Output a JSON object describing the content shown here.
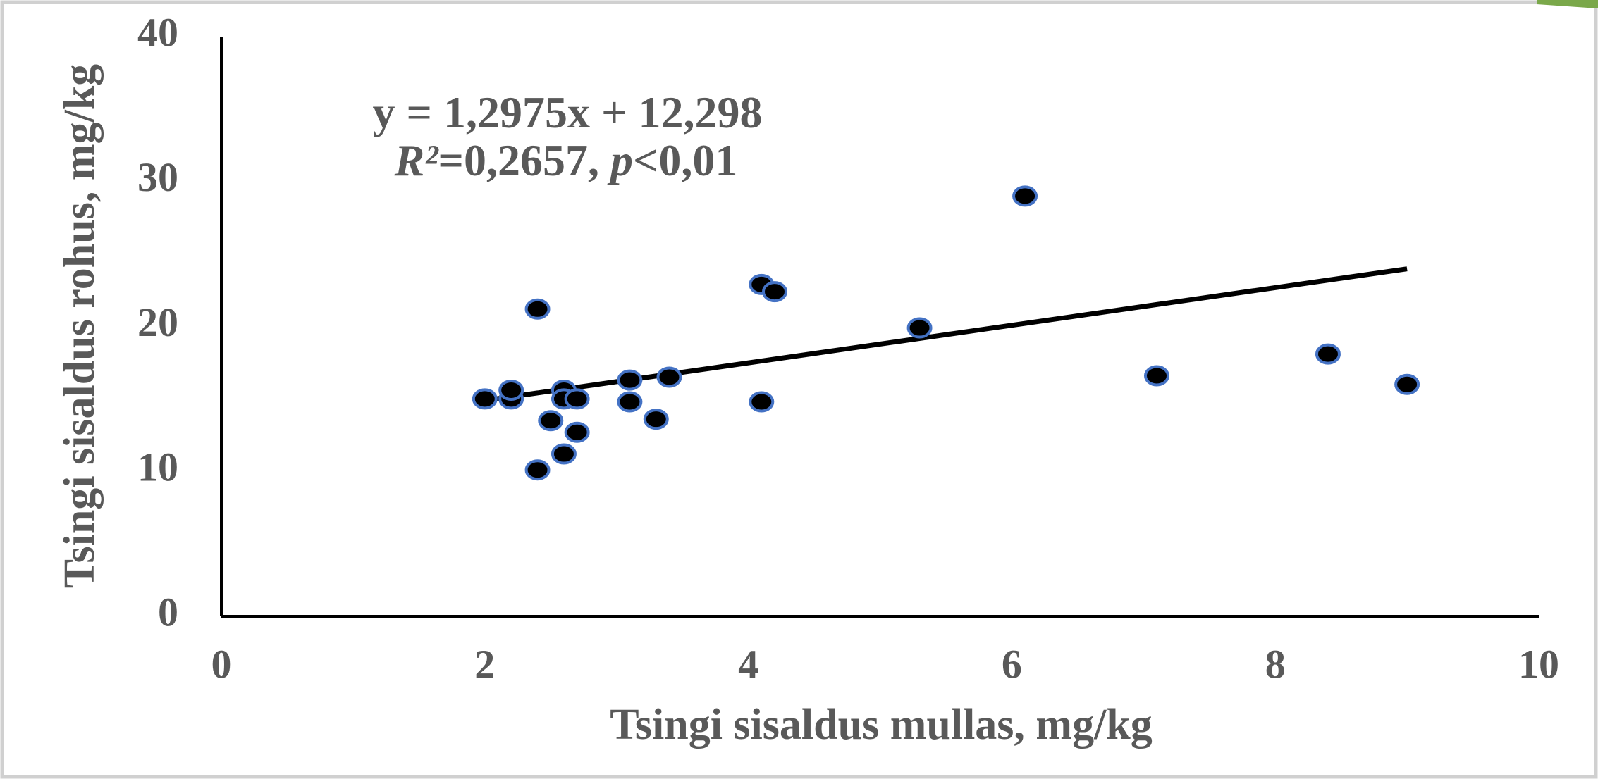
{
  "chart_data": {
    "type": "scatter",
    "x_label": "Tsingi sisaldus mullas, mg/kg",
    "y_label": "Tsingi sisaldus rohus, mg/kg",
    "annotations": [
      {
        "parts": [
          {
            "text": "y = 1,2975x + 12,298",
            "italic": false
          }
        ]
      },
      {
        "parts": [
          {
            "text": "R²",
            "italic": true
          },
          {
            "text": "=0,2657, ",
            "italic": false
          },
          {
            "text": "p",
            "italic": true
          },
          {
            "text": "<0,01",
            "italic": false
          }
        ]
      }
    ],
    "x": [
      2.0,
      2.2,
      2.2,
      2.4,
      2.4,
      2.5,
      2.6,
      2.6,
      2.6,
      2.7,
      2.7,
      3.1,
      3.1,
      3.3,
      3.4,
      4.1,
      4.2,
      4.1,
      5.3,
      6.1,
      7.1,
      8.4,
      9.0
    ],
    "values": [
      15.0,
      15.0,
      15.6,
      21.2,
      10.1,
      13.5,
      15.6,
      15.0,
      11.2,
      15.0,
      12.7,
      16.3,
      14.8,
      13.6,
      16.5,
      22.9,
      22.4,
      14.8,
      19.9,
      29.0,
      16.6,
      18.1,
      16.0
    ],
    "color": "#000000",
    "edge_color": "#4472c4",
    "trendline": {
      "x": [
        2,
        9
      ],
      "y": [
        14.893,
        23.976
      ],
      "color": "#000000"
    },
    "xlim": [
      0,
      10
    ],
    "ylim": [
      0,
      40
    ],
    "xticks": [
      0,
      2,
      4,
      6,
      8,
      10
    ],
    "yticks": [
      0,
      10,
      20,
      30,
      40
    ],
    "grid": false
  }
}
